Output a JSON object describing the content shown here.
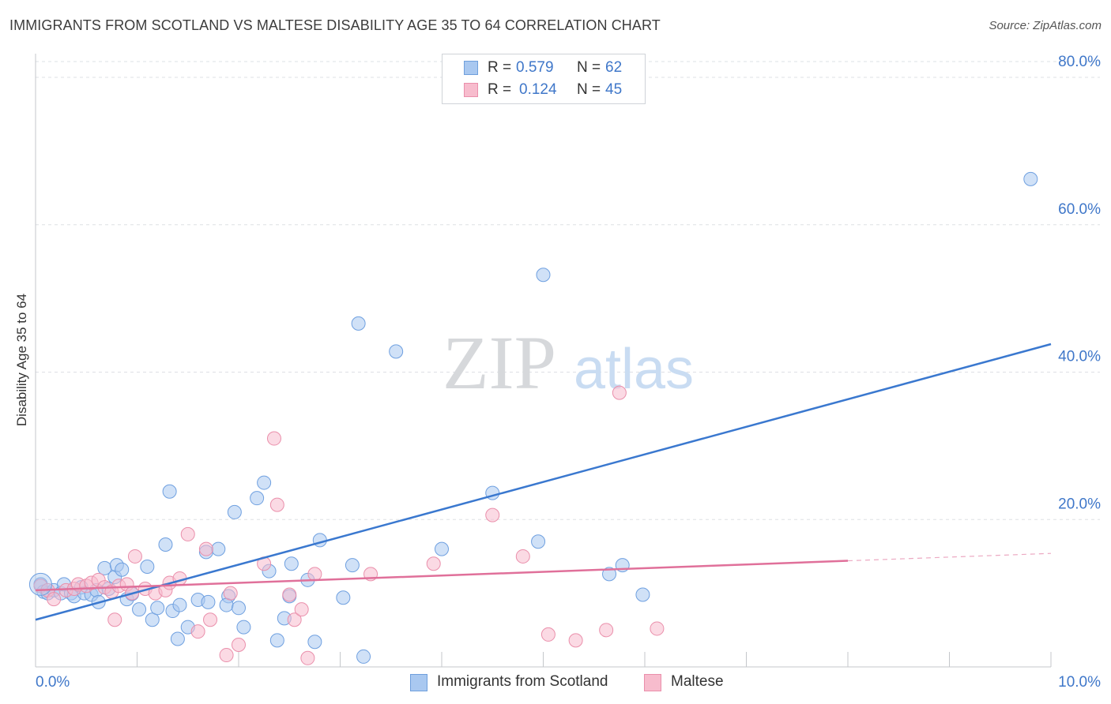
{
  "title": "IMMIGRANTS FROM SCOTLAND VS MALTESE DISABILITY AGE 35 TO 64 CORRELATION CHART",
  "source": "Source: ZipAtlas.com",
  "watermark": {
    "zip": "ZIP",
    "atlas": "atlas"
  },
  "legend": {
    "rows": [
      {
        "r_label": "R =",
        "r_value": "0.579",
        "n_label": "N =",
        "n_value": "62",
        "color": "#a9c8f0",
        "border": "#6f9fdc"
      },
      {
        "r_label": "R =",
        "r_value": "0.124",
        "n_label": "N =",
        "n_value": "45",
        "color": "#f7bccd",
        "border": "#ea8fab"
      }
    ]
  },
  "bottom_legend": [
    {
      "label": "Immigrants from Scotland",
      "color": "#a9c8f0",
      "border": "#6f9fdc"
    },
    {
      "label": "Maltese",
      "color": "#f7bccd",
      "border": "#ea8fab"
    }
  ],
  "chart_data": {
    "type": "scatter",
    "title": "IMMIGRANTS FROM SCOTLAND VS MALTESE DISABILITY AGE 35 TO 64 CORRELATION CHART",
    "xlabel": "",
    "ylabel": "Disability Age 35 to 64",
    "xlim": [
      0,
      10
    ],
    "ylim": [
      0,
      80
    ],
    "x_tick_labels": [
      "0.0%",
      "10.0%"
    ],
    "y_ticks": [
      20,
      40,
      60,
      80
    ],
    "y_tick_labels": [
      "20.0%",
      "40.0%",
      "60.0%",
      "80.0%"
    ],
    "grid": true,
    "series": [
      {
        "name": "Immigrants from Scotland",
        "color": "#6fa0e0",
        "fill": "#a9c8f0",
        "line_color": "#3a78cf",
        "trend": {
          "x": [
            0,
            10
          ],
          "y": [
            6.4,
            43.8
          ],
          "dashed_from": null
        },
        "points": [
          [
            0.05,
            11.2
          ],
          [
            0.08,
            10.2
          ],
          [
            0.12,
            10.0
          ],
          [
            0.18,
            10.4
          ],
          [
            0.25,
            10.0
          ],
          [
            0.28,
            11.2
          ],
          [
            0.35,
            10.0
          ],
          [
            0.38,
            9.6
          ],
          [
            0.45,
            10.8
          ],
          [
            0.48,
            10.0
          ],
          [
            0.55,
            9.8
          ],
          [
            0.6,
            10.4
          ],
          [
            0.62,
            8.8
          ],
          [
            0.68,
            13.4
          ],
          [
            0.72,
            10.6
          ],
          [
            0.78,
            12.2
          ],
          [
            0.8,
            13.8
          ],
          [
            0.85,
            13.2
          ],
          [
            0.9,
            9.2
          ],
          [
            0.95,
            9.9
          ],
          [
            1.02,
            7.8
          ],
          [
            1.1,
            13.6
          ],
          [
            1.15,
            6.4
          ],
          [
            1.2,
            8.0
          ],
          [
            1.28,
            16.6
          ],
          [
            1.32,
            23.8
          ],
          [
            1.35,
            7.6
          ],
          [
            1.4,
            3.8
          ],
          [
            1.42,
            8.4
          ],
          [
            1.5,
            5.4
          ],
          [
            1.6,
            9.1
          ],
          [
            1.7,
            8.8
          ],
          [
            1.68,
            15.6
          ],
          [
            1.8,
            16.0
          ],
          [
            1.9,
            9.6
          ],
          [
            1.88,
            8.4
          ],
          [
            1.96,
            21.0
          ],
          [
            2.0,
            8.0
          ],
          [
            2.05,
            5.4
          ],
          [
            2.18,
            22.9
          ],
          [
            2.25,
            25.0
          ],
          [
            2.3,
            13.0
          ],
          [
            2.38,
            3.6
          ],
          [
            2.45,
            6.6
          ],
          [
            2.5,
            9.6
          ],
          [
            2.52,
            14.0
          ],
          [
            2.68,
            11.8
          ],
          [
            2.75,
            3.4
          ],
          [
            2.8,
            17.2
          ],
          [
            3.03,
            9.4
          ],
          [
            3.12,
            13.8
          ],
          [
            3.18,
            46.6
          ],
          [
            3.23,
            1.4
          ],
          [
            3.55,
            42.8
          ],
          [
            4.0,
            16.0
          ],
          [
            4.5,
            23.6
          ],
          [
            5.0,
            53.2
          ],
          [
            4.95,
            17.0
          ],
          [
            5.65,
            12.6
          ],
          [
            5.78,
            13.8
          ],
          [
            5.98,
            9.8
          ],
          [
            9.8,
            66.2
          ]
        ]
      },
      {
        "name": "Maltese",
        "color": "#ea8fab",
        "fill": "#f7bccd",
        "line_color": "#e0709a",
        "trend": {
          "x": [
            0,
            10
          ],
          "y": [
            10.4,
            15.4
          ],
          "dashed_from": 8.0
        },
        "points": [
          [
            0.05,
            11.0
          ],
          [
            0.12,
            10.4
          ],
          [
            0.18,
            9.2
          ],
          [
            0.3,
            10.4
          ],
          [
            0.38,
            10.6
          ],
          [
            0.42,
            11.2
          ],
          [
            0.5,
            11.0
          ],
          [
            0.55,
            11.4
          ],
          [
            0.62,
            11.8
          ],
          [
            0.68,
            10.8
          ],
          [
            0.75,
            10.2
          ],
          [
            0.78,
            6.4
          ],
          [
            0.82,
            11.0
          ],
          [
            0.9,
            11.2
          ],
          [
            0.95,
            10.0
          ],
          [
            0.98,
            15.0
          ],
          [
            1.08,
            10.6
          ],
          [
            1.18,
            10.0
          ],
          [
            1.28,
            10.4
          ],
          [
            1.32,
            11.4
          ],
          [
            1.42,
            12.0
          ],
          [
            1.5,
            18.0
          ],
          [
            1.6,
            4.8
          ],
          [
            1.68,
            16.0
          ],
          [
            1.72,
            6.4
          ],
          [
            1.88,
            1.6
          ],
          [
            1.92,
            10.0
          ],
          [
            2.0,
            3.0
          ],
          [
            2.25,
            14.0
          ],
          [
            2.35,
            31.0
          ],
          [
            2.38,
            22.0
          ],
          [
            2.5,
            9.8
          ],
          [
            2.55,
            6.4
          ],
          [
            2.62,
            7.8
          ],
          [
            2.68,
            1.2
          ],
          [
            2.75,
            12.6
          ],
          [
            3.3,
            12.6
          ],
          [
            3.92,
            14.0
          ],
          [
            4.5,
            20.6
          ],
          [
            4.8,
            15.0
          ],
          [
            5.05,
            4.4
          ],
          [
            5.32,
            3.6
          ],
          [
            5.75,
            37.2
          ],
          [
            5.62,
            5.0
          ],
          [
            6.12,
            5.2
          ]
        ]
      }
    ]
  }
}
